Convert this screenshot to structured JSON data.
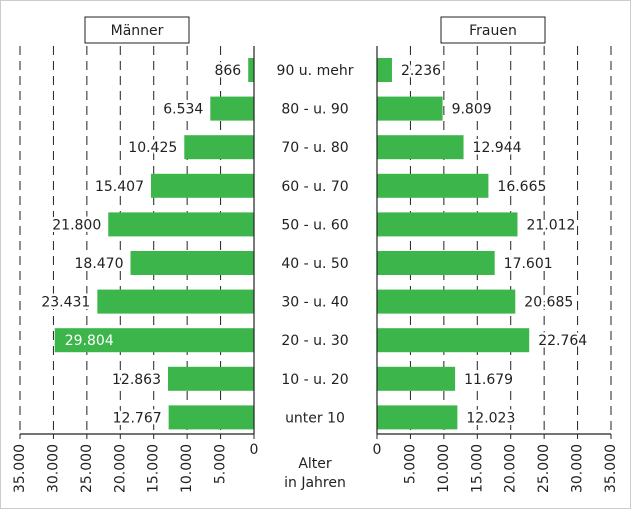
{
  "chart_data": {
    "type": "bar",
    "orientation": "horizontal-population-pyramid",
    "categories": [
      "90 u. mehr",
      "80 - u. 90",
      "70 - u. 80",
      "60 - u. 70",
      "50 - u. 60",
      "40 - u. 50",
      "30 - u. 40",
      "20 - u. 30",
      "10 - u. 20",
      "unter 10"
    ],
    "category_axis_label": [
      "Alter",
      "in Jahren"
    ],
    "bar_color": "#3cb54a",
    "grid": "vertical-dashed",
    "panels": [
      {
        "name": "Männer",
        "direction": "left",
        "values": [
          866,
          6534,
          10425,
          15407,
          21800,
          18470,
          23431,
          29804,
          12863,
          12767
        ],
        "value_labels": [
          "866",
          "6.534",
          "10.425",
          "15.407",
          "21.800",
          "18.470",
          "23.431",
          "29.804",
          "12.863",
          "12.767"
        ],
        "xlim": [
          0,
          35000
        ],
        "ticks": [
          0,
          5000,
          10000,
          15000,
          20000,
          25000,
          30000,
          35000
        ],
        "tick_labels": [
          "0",
          "5.000",
          "10.000",
          "15.000",
          "20.000",
          "25.000",
          "30.000",
          "35.000"
        ]
      },
      {
        "name": "Frauen",
        "direction": "right",
        "values": [
          2236,
          9809,
          12944,
          16665,
          21012,
          17601,
          20685,
          22764,
          11679,
          12023
        ],
        "value_labels": [
          "2.236",
          "9.809",
          "12.944",
          "16.665",
          "21.012",
          "17.601",
          "20.685",
          "22.764",
          "11.679",
          "12.023"
        ],
        "xlim": [
          0,
          35000
        ],
        "ticks": [
          0,
          5000,
          10000,
          15000,
          20000,
          25000,
          30000,
          35000
        ],
        "tick_labels": [
          "0",
          "5.000",
          "10.000",
          "15.000",
          "20.000",
          "25.000",
          "30.000",
          "35.000"
        ]
      }
    ]
  }
}
